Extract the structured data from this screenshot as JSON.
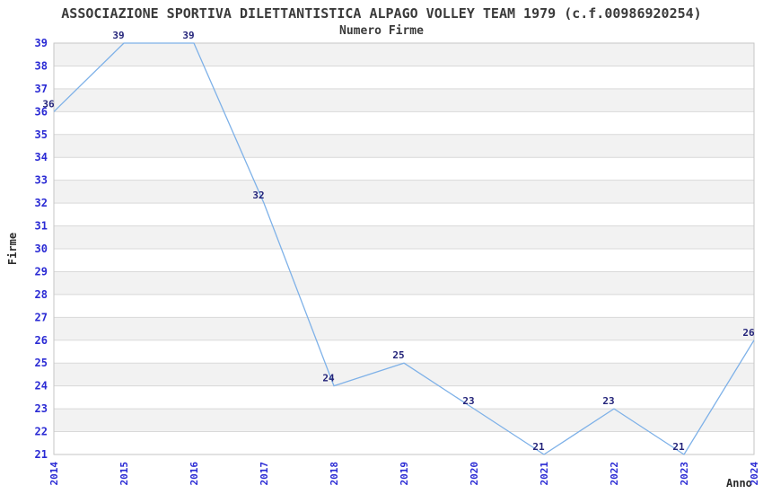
{
  "chart_data": {
    "type": "line",
    "title": "ASSOCIAZIONE SPORTIVA DILETTANTISTICA ALPAGO VOLLEY TEAM 1979 (c.f.00986920254)",
    "subtitle": "Numero Firme",
    "xlabel": "Anno",
    "ylabel": "Firme",
    "categories": [
      "2014",
      "2015",
      "2016",
      "2017",
      "2018",
      "2019",
      "2020",
      "2021",
      "2022",
      "2023",
      "2024"
    ],
    "values": [
      36,
      39,
      39,
      32,
      24,
      25,
      23,
      21,
      23,
      21,
      26
    ],
    "ylim": [
      21,
      39
    ],
    "ytick_step": 1,
    "grid": true,
    "legend_position": "none",
    "point_labels_visible": true,
    "colors": {
      "line": "#7EB1E8",
      "tick_label": "#2A2AD4",
      "data_label": "#24247A",
      "band_gray": "#F2F2F2",
      "band_white": "#FFFFFF",
      "grid_line": "#D9D9D9",
      "plot_border": "#C6C6C6",
      "title_text": "#3A3A3A"
    }
  }
}
